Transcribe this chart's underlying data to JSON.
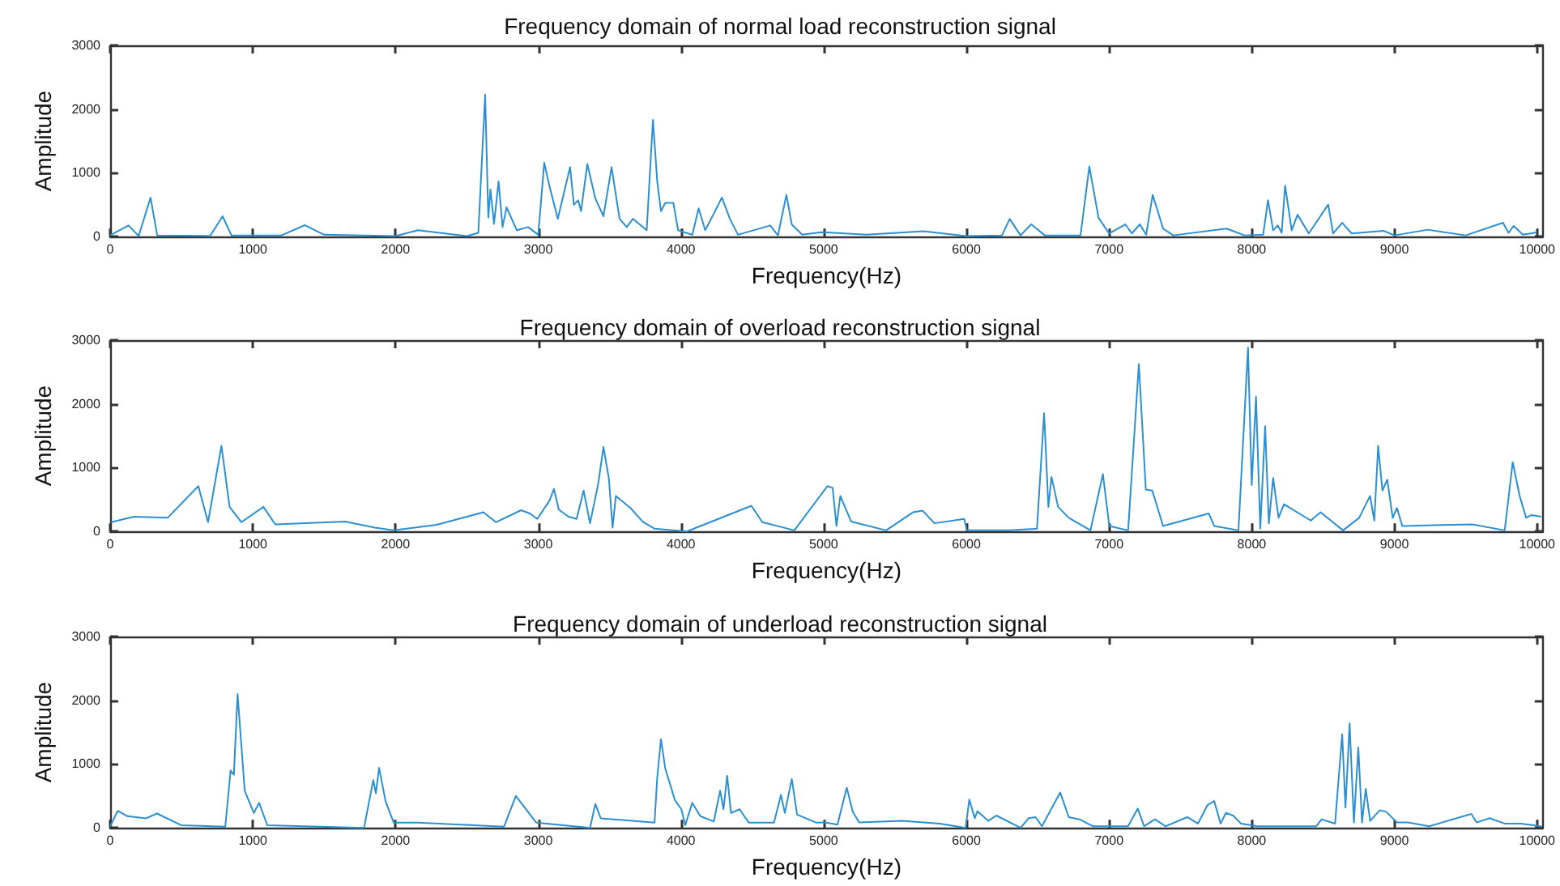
{
  "chart_data": [
    {
      "type": "line",
      "title": "Frequency domain of normal load reconstruction signal",
      "xlabel": "Frequency(Hz)",
      "ylabel": "Amplitude",
      "xlim": [
        0,
        10040
      ],
      "xticks": [
        0,
        1000,
        2000,
        3000,
        4000,
        5000,
        6000,
        7000,
        8000,
        9000,
        10000
      ],
      "ylim": [
        0,
        3000
      ],
      "yticks": [
        0,
        1000,
        2000,
        3000
      ],
      "grid": false,
      "marker": "none",
      "line_style": "solid",
      "series": [
        {
          "color": "#2b8fd4",
          "x": [
            0,
            128,
            200,
            283,
            330,
            700,
            788,
            850,
            1200,
            1365,
            1500,
            2000,
            2156,
            2500,
            2580,
            2628,
            2650,
            2665,
            2690,
            2722,
            2750,
            2778,
            2850,
            2929,
            3000,
            3042,
            3080,
            3137,
            3223,
            3250,
            3280,
            3300,
            3344,
            3400,
            3457,
            3514,
            3570,
            3620,
            3664,
            3760,
            3804,
            3834,
            3860,
            3890,
            3947,
            3980,
            4022,
            4080,
            4124,
            4170,
            4230,
            4287,
            4343,
            4400,
            4626,
            4680,
            4739,
            4777,
            4850,
            4984,
            5300,
            5700,
            6000,
            6250,
            6304,
            6380,
            6455,
            6550,
            6800,
            6862,
            6926,
            7000,
            7114,
            7160,
            7216,
            7260,
            7306,
            7379,
            7450,
            7823,
            7950,
            8080,
            8114,
            8150,
            8182,
            8210,
            8234,
            8280,
            8321,
            8400,
            8536,
            8570,
            8634,
            8700,
            8924,
            9000,
            9234,
            9500,
            9761,
            9800,
            9836,
            9900,
            9998
          ],
          "values": [
            20,
            176,
            10,
            613,
            20,
            10,
            320,
            20,
            20,
            180,
            30,
            10,
            100,
            10,
            60,
            2226,
            300,
            740,
            200,
            865,
            150,
            460,
            100,
            150,
            30,
            1160,
            780,
            280,
            1090,
            500,
            570,
            400,
            1140,
            600,
            320,
            1090,
            280,
            150,
            280,
            100,
            1830,
            865,
            400,
            530,
            530,
            100,
            70,
            30,
            445,
            100,
            360,
            613,
            280,
            30,
            176,
            20,
            655,
            190,
            30,
            70,
            30,
            84,
            10,
            20,
            277,
            20,
            193,
            20,
            20,
            1100,
            300,
            50,
            193,
            50,
            193,
            30,
            655,
            126,
            20,
            126,
            20,
            30,
            571,
            100,
            176,
            60,
            800,
            100,
            344,
            50,
            504,
            50,
            218,
            50,
            92,
            20,
            109,
            20,
            218,
            60,
            168,
            30,
            67
          ]
        }
      ]
    },
    {
      "type": "line",
      "title": "Frequency domain of overload reconstruction signal",
      "xlabel": "Frequency(Hz)",
      "ylabel": "Amplitude",
      "xlim": [
        0,
        10040
      ],
      "xticks": [
        0,
        1000,
        2000,
        3000,
        4000,
        5000,
        6000,
        7000,
        8000,
        9000,
        10000
      ],
      "ylim": [
        0,
        3000
      ],
      "yticks": [
        0,
        1000,
        2000,
        3000
      ],
      "grid": false,
      "marker": "none",
      "line_style": "solid",
      "series": [
        {
          "color": "#2b8fd4",
          "x": [
            8,
            166,
            403,
            618,
            686,
            780,
            837,
            920,
            1074,
            1157,
            1647,
            1855,
            1987,
            2288,
            2616,
            2703,
            2880,
            2941,
            2993,
            3080,
            3110,
            3144,
            3212,
            3269,
            3318,
            3363,
            3420,
            3457,
            3495,
            3521,
            3544,
            3646,
            3732,
            3815,
            4041,
            4494,
            4570,
            4795,
            5026,
            5063,
            5090,
            5117,
            5193,
            5438,
            5626,
            5694,
            5777,
            5985,
            6004,
            6306,
            6495,
            6545,
            6575,
            6597,
            6643,
            6718,
            6870,
            6957,
            7002,
            7134,
            7209,
            7258,
            7303,
            7379,
            7699,
            7737,
            7907,
            7974,
            8000,
            8030,
            8060,
            8094,
            8120,
            8150,
            8188,
            8226,
            8414,
            8482,
            8640,
            8753,
            8829,
            8859,
            8886,
            8916,
            8950,
            8988,
            9018,
            9055,
            9546,
            9773,
            9829,
            9878,
            9923,
            9961,
            10029
          ],
          "values": [
            145,
            230,
            214,
            710,
            145,
            1342,
            385,
            145,
            385,
            111,
            154,
            60,
            17,
            103,
            300,
            145,
            333,
            282,
            197,
            487,
            667,
            342,
            231,
            197,
            641,
            128,
            744,
            1325,
            829,
            60,
            556,
            368,
            154,
            43,
            0,
            402,
            145,
            17,
            710,
            684,
            86,
            556,
            154,
            17,
            300,
            325,
            128,
            197,
            17,
            17,
            43,
            1855,
            385,
            855,
            385,
            214,
            17,
            898,
            86,
            17,
            2625,
            658,
            641,
            86,
            282,
            86,
            17,
            2881,
            727,
            2112,
            43,
            1650,
            128,
            838,
            214,
            427,
            171,
            300,
            17,
            214,
            556,
            171,
            1342,
            641,
            812,
            214,
            368,
            86,
            111,
            17,
            1086,
            556,
            214,
            257,
            231
          ]
        }
      ]
    },
    {
      "type": "line",
      "title": "Frequency domain of underload reconstruction signal",
      "xlabel": "Frequency(Hz)",
      "ylabel": "Amplitude",
      "xlim": [
        0,
        10040
      ],
      "xticks": [
        0,
        1000,
        2000,
        3000,
        4000,
        5000,
        6000,
        7000,
        8000,
        9000,
        10000
      ],
      "ylim": [
        0,
        3000
      ],
      "yticks": [
        0,
        1000,
        2000,
        3000
      ],
      "grid": false,
      "marker": "none",
      "line_style": "solid",
      "series": [
        {
          "color": "#2b8fd4",
          "x": [
            0,
            53,
            121,
            253,
            328,
            498,
            807,
            844,
            867,
            893,
            943,
            1007,
            1044,
            1101,
            1779,
            1844,
            1862,
            1885,
            1930,
            1987,
            2156,
            2760,
            2843,
            2986,
            3363,
            3400,
            3438,
            3815,
            3834,
            3860,
            3890,
            3958,
            4003,
            4030,
            4079,
            4136,
            4230,
            4275,
            4298,
            4324,
            4351,
            4411,
            4475,
            4652,
            4701,
            4728,
            4777,
            4814,
            4946,
            5011,
            5097,
            5162,
            5204,
            5249,
            5550,
            5814,
            5995,
            6021,
            6059,
            6078,
            6153,
            6210,
            6380,
            6436,
            6485,
            6530,
            6658,
            6718,
            6793,
            6887,
            7133,
            7201,
            7246,
            7322,
            7396,
            7548,
            7623,
            7691,
            7737,
            7782,
            7819,
            7869,
            7925,
            8038,
            8452,
            8490,
            8584,
            8634,
            8657,
            8686,
            8716,
            8747,
            8773,
            8799,
            8830,
            8897,
            8942,
            9018,
            9094,
            9244,
            9539,
            9576,
            9667,
            9772,
            9885,
            10029
          ],
          "values": [
            20,
            267,
            183,
            150,
            225,
            42,
            17,
            900,
            833,
            2100,
            583,
            233,
            392,
            42,
            0,
            750,
            541,
            941,
            417,
            83,
            83,
            17,
            500,
            83,
            0,
            375,
            150,
            83,
            791,
            1391,
            933,
            433,
            292,
            42,
            392,
            183,
            100,
            583,
            292,
            816,
            233,
            292,
            83,
            83,
            516,
            233,
            766,
            208,
            83,
            84,
            50,
            630,
            252,
            84,
            109,
            67,
            0,
            445,
            151,
            260,
            109,
            193,
            0,
            151,
            168,
            25,
            554,
            168,
            134,
            25,
            25,
            302,
            25,
            134,
            25,
            168,
            67,
            361,
            420,
            67,
            235,
            193,
            67,
            25,
            25,
            134,
            67,
            1470,
            319,
            1638,
            84,
            1260,
            84,
            613,
            109,
            277,
            252,
            84,
            84,
            25,
            218,
            84,
            151,
            67,
            67,
            25
          ]
        }
      ]
    }
  ]
}
